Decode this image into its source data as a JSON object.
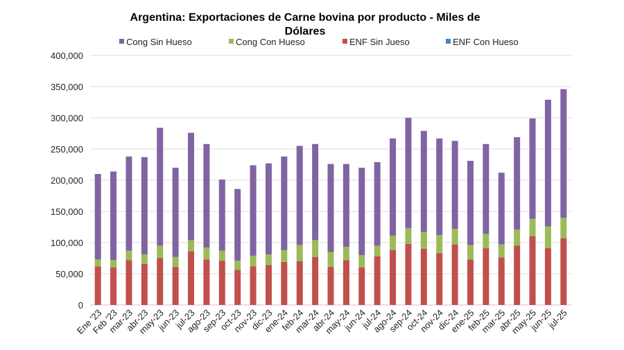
{
  "chart_data": {
    "type": "bar",
    "stacked": true,
    "title": "Argentina: Exportaciones de Carne bovina por producto - Miles de Dólares",
    "title_lines": [
      "Argentina: Exportaciones de Carne bovina por producto - Miles de",
      "Dólares"
    ],
    "xlabel": "",
    "ylabel": "",
    "ylim": [
      0,
      400000
    ],
    "yticks": [
      0,
      50000,
      100000,
      150000,
      200000,
      250000,
      300000,
      350000,
      400000
    ],
    "ytick_labels": [
      "0",
      "50,000",
      "100,000",
      "150,000",
      "200,000",
      "250,000",
      "300,000",
      "350,000",
      "400,000"
    ],
    "grid": true,
    "legend_position": "top",
    "categories": [
      "Ene '23",
      "Feb '23",
      "mar-23",
      "abr-23",
      "may-23",
      "jun-23",
      "jul-23",
      "ago-23",
      "sep-23",
      "oct-23",
      "nov-23",
      "dic-23",
      "ene-24",
      "feb-24",
      "mar-24",
      "abr-24",
      "may-24",
      "jun-24",
      "jul-24",
      "ago-24",
      "sep-24",
      "oct-24",
      "nov-24",
      "dic-24",
      "ene-25",
      "feb-25",
      "mar-25",
      "abr-25",
      "may-25",
      "jun-25",
      "jul-25"
    ],
    "series": [
      {
        "name": "ENF Con Hueso",
        "color": "#4f81bd",
        "values": [
          0,
          0,
          0,
          0,
          0,
          0,
          0,
          0,
          0,
          0,
          0,
          0,
          0,
          0,
          0,
          0,
          0,
          0,
          0,
          0,
          0,
          0,
          0,
          0,
          0,
          0,
          0,
          0,
          0,
          0,
          0
        ]
      },
      {
        "name": "ENF Sin Jueso",
        "color": "#c0504d",
        "values": [
          62000,
          60000,
          72000,
          66000,
          75000,
          61000,
          86000,
          73000,
          71000,
          56000,
          62000,
          64000,
          69000,
          70000,
          77000,
          61000,
          72000,
          60000,
          78000,
          88000,
          98000,
          90000,
          83000,
          97000,
          73000,
          91000,
          76000,
          95000,
          110000,
          91000,
          107000
        ]
      },
      {
        "name": "Cong Con Hueso",
        "color": "#9bbb59",
        "values": [
          11000,
          12000,
          15000,
          15000,
          20000,
          16000,
          18000,
          19000,
          16000,
          15000,
          17000,
          17000,
          19000,
          26000,
          27000,
          24000,
          21000,
          20000,
          17000,
          23000,
          25000,
          27000,
          29000,
          25000,
          23000,
          23000,
          21000,
          26000,
          28000,
          35000,
          33000
        ]
      },
      {
        "name": "Cong Sin Hueso",
        "color": "#8064a2",
        "values": [
          137000,
          142000,
          151000,
          156000,
          189000,
          143000,
          172000,
          166000,
          114000,
          115000,
          145000,
          146000,
          150000,
          159000,
          154000,
          141000,
          133000,
          140000,
          134000,
          156000,
          177000,
          162000,
          155000,
          141000,
          135000,
          144000,
          115000,
          148000,
          161000,
          203000,
          206000
        ]
      }
    ],
    "legend_order": [
      "Cong Sin Hueso",
      "Cong Con Hueso",
      "ENF Sin Jueso",
      "ENF Con Hueso"
    ]
  }
}
